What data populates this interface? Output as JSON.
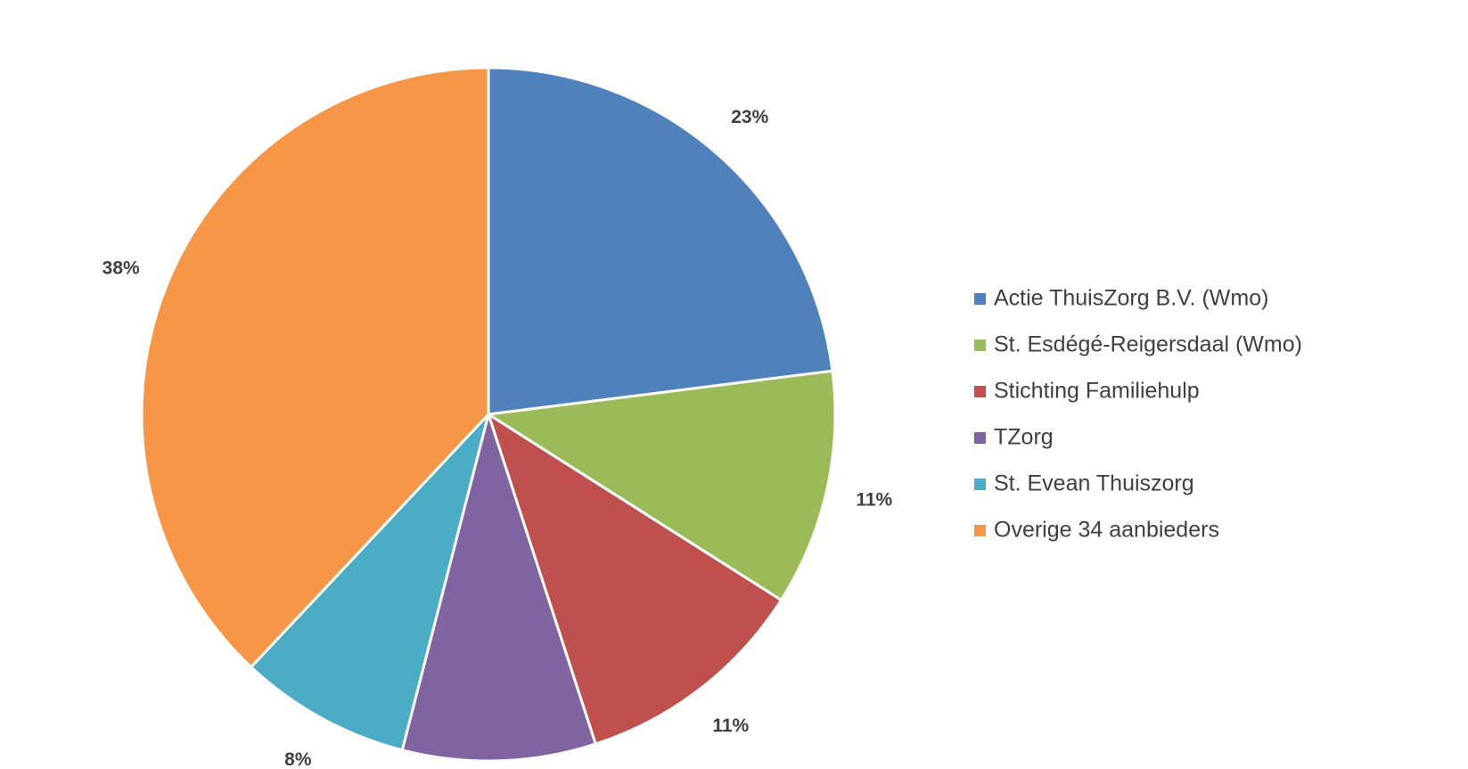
{
  "chart_data": {
    "type": "pie",
    "categories": [
      "Actie ThuisZorg B.V. (Wmo)",
      "St. Esdégé-Reigersdaal (Wmo)",
      "Stichting Familiehulp",
      "TZorg",
      "St. Evean Thuiszorg",
      "Overige 34 aanbieders"
    ],
    "values": [
      23,
      11,
      11,
      9,
      8,
      38
    ],
    "value_labels": [
      "23%",
      "11%",
      "11%",
      null,
      "8%",
      "38%"
    ],
    "colors": [
      "#4f81bd",
      "#9bbb59",
      "#c0504d",
      "#8064a2",
      "#4bacc6",
      "#f79646"
    ],
    "legend": "right"
  }
}
